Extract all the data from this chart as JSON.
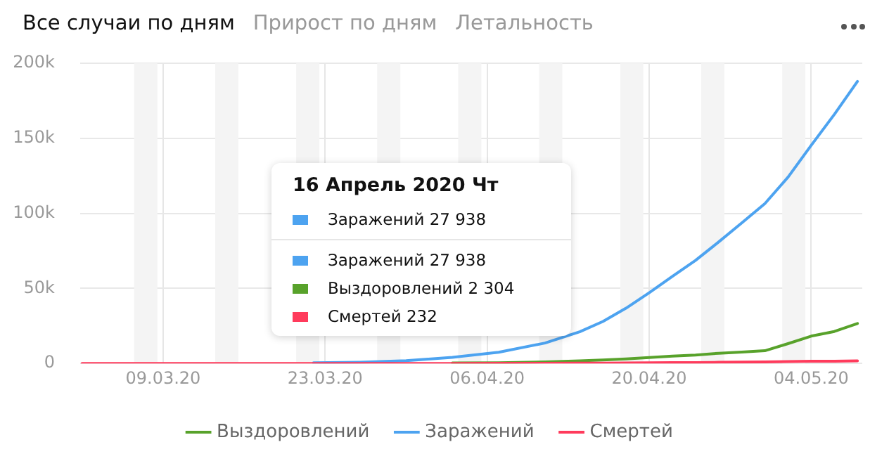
{
  "chart_data": {
    "type": "line",
    "title": "Все случаи по дням",
    "x": [
      "2020-03-02",
      "2020-03-06",
      "2020-03-10",
      "2020-03-14",
      "2020-03-18",
      "2020-03-22",
      "2020-03-26",
      "2020-03-30",
      "2020-04-03",
      "2020-04-07",
      "2020-04-11",
      "2020-04-14",
      "2020-04-16",
      "2020-04-18",
      "2020-04-20",
      "2020-04-22",
      "2020-04-24",
      "2020-04-26",
      "2020-04-28",
      "2020-04-30",
      "2020-05-02",
      "2020-05-04",
      "2020-05-06",
      "2020-05-08"
    ],
    "series": [
      {
        "name": "Выздоровлений",
        "color": "#58a22b",
        "values": [
          null,
          null,
          null,
          null,
          null,
          null,
          null,
          null,
          300,
          500,
          1000,
          1700,
          2304,
          3000,
          3900,
          4900,
          5600,
          6800,
          7600,
          8500,
          13200,
          18200,
          21300,
          26600
        ]
      },
      {
        "name": "Заражений",
        "color": "#4da3f0",
        "values": [
          null,
          null,
          null,
          null,
          null,
          400,
          800,
          1800,
          4100,
          7500,
          13600,
          21100,
          27938,
          36800,
          47100,
          58000,
          68600,
          80900,
          93600,
          106500,
          124100,
          145300,
          165900,
          187900
        ]
      },
      {
        "name": "Смертей",
        "color": "#ff3b5c",
        "values": [
          0,
          0,
          0,
          0,
          0,
          0,
          0,
          20,
          30,
          60,
          110,
          170,
          232,
          310,
          410,
          510,
          620,
          750,
          870,
          1070,
          1280,
          1450,
          1540,
          1720
        ]
      }
    ],
    "xlim": [
      "2020-03-01T20:00",
      "2020-05-08T10:00"
    ],
    "xticks": [
      {
        "value": "2020-03-09",
        "label": "09.03.20"
      },
      {
        "value": "2020-03-23",
        "label": "23.03.20"
      },
      {
        "value": "2020-04-06",
        "label": "06.04.20"
      },
      {
        "value": "2020-04-20",
        "label": "20.04.20"
      },
      {
        "value": "2020-05-04",
        "label": "04.05.20"
      }
    ],
    "ylim": [
      0,
      200000
    ],
    "yticks": [
      0,
      {
        "value": 50000,
        "label": "50k"
      },
      {
        "value": 100000,
        "label": "100k"
      },
      {
        "value": 150000,
        "label": "150k"
      },
      {
        "value": 200000,
        "label": "200k"
      }
    ],
    "bands": [
      {
        "axis": "x",
        "from": "2020-03-06T12:00",
        "to": "2020-03-08T12:00",
        "color": "#f4f4f4"
      },
      {
        "axis": "x",
        "from": "2020-03-13T12:00",
        "to": "2020-03-15T12:00",
        "color": "#f4f4f4"
      },
      {
        "axis": "x",
        "from": "2020-03-20T12:00",
        "to": "2020-03-22T12:00",
        "color": "#f4f4f4"
      },
      {
        "axis": "x",
        "from": "2020-03-27T12:00",
        "to": "2020-03-29T12:00",
        "color": "#f4f4f4"
      },
      {
        "axis": "x",
        "from": "2020-04-03T12:00",
        "to": "2020-04-05T12:00",
        "color": "#f4f4f4"
      },
      {
        "axis": "x",
        "from": "2020-04-10T12:00",
        "to": "2020-04-12T12:00",
        "color": "#f4f4f4"
      },
      {
        "axis": "x",
        "from": "2020-04-17T12:00",
        "to": "2020-04-19T12:00",
        "color": "#f4f4f4"
      },
      {
        "axis": "x",
        "from": "2020-04-24T12:00",
        "to": "2020-04-26T12:00",
        "color": "#f4f4f4"
      },
      {
        "axis": "x",
        "from": "2020-05-01T12:00",
        "to": "2020-05-03T12:00",
        "color": "#f4f4f4"
      }
    ],
    "annotations": [
      "Прирост по дням",
      "Летальность",
      "16 Апрель 2020 Чт",
      "Заражений 27 938",
      "Заражений 27 938",
      "Выздоровлений 2 304",
      "Смертей 232"
    ],
    "grid": true,
    "legend": "bottom",
    "marker": "none",
    "line_style": "solid"
  }
}
